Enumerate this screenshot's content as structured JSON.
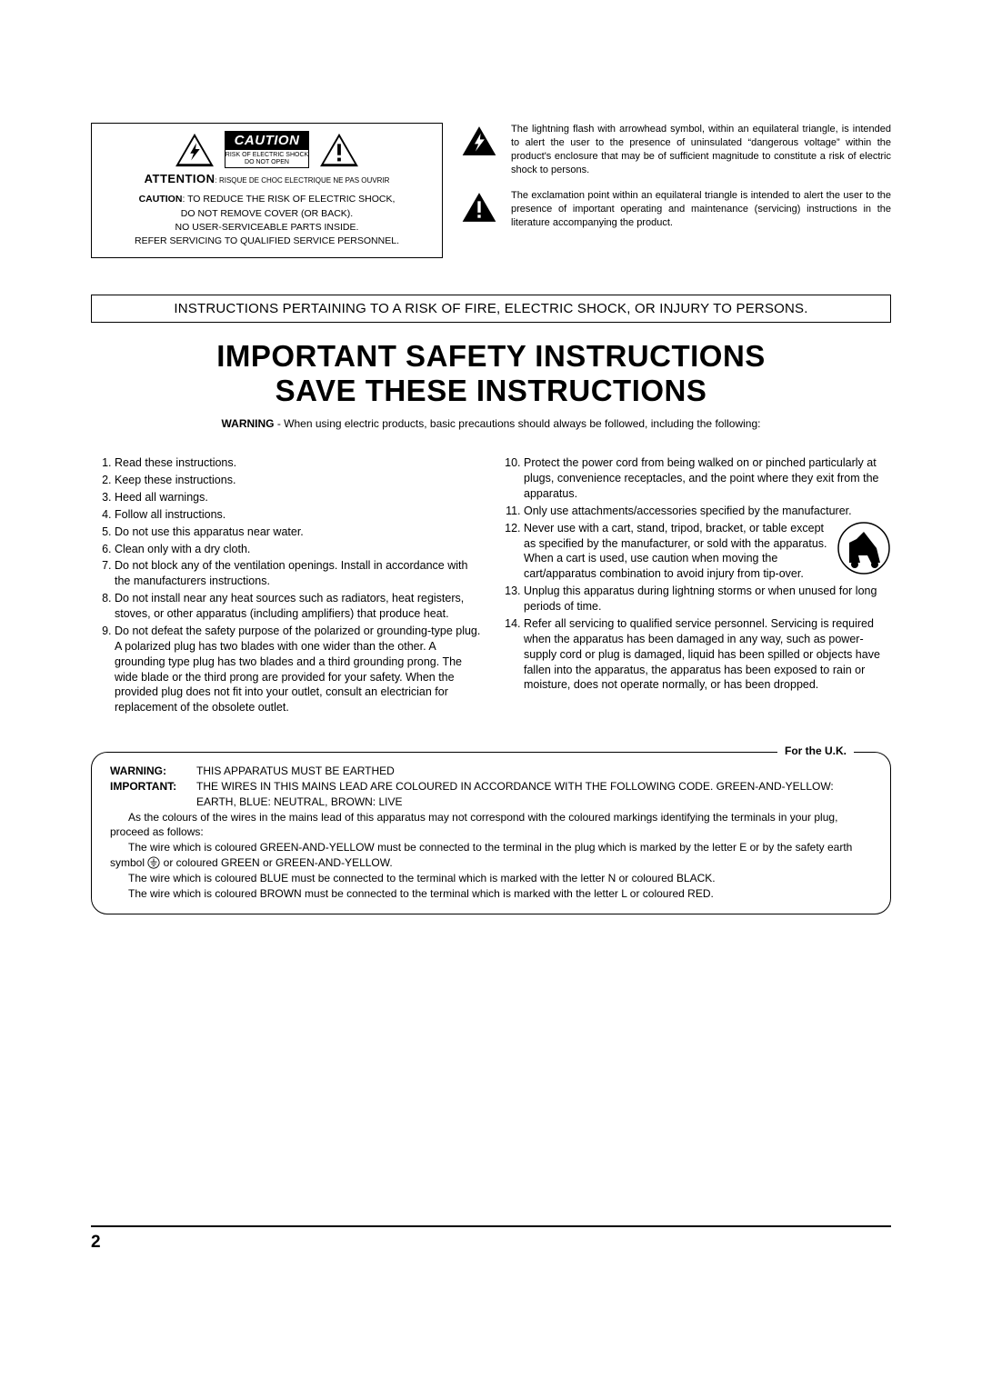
{
  "colors": {
    "text": "#000000",
    "bg": "#ffffff"
  },
  "caution_panel": {
    "label": "CAUTION",
    "tiny_line1": "RISK OF ELECTRIC SHOCK",
    "tiny_line2": "DO NOT OPEN",
    "attention_bold": "ATTENTION",
    "attention_rest": ": RISQUE DE CHOC ELECTRIQUE NE PAS OUVRIR",
    "body_bold": "CAUTION",
    "body_line1": ":   TO REDUCE THE RISK OF ELECTRIC SHOCK,",
    "body_line2": "DO NOT REMOVE COVER (OR BACK).",
    "body_line3": "NO USER-SERVICEABLE PARTS INSIDE.",
    "body_line4": "REFER SERVICING TO QUALIFIED SERVICE PERSONNEL."
  },
  "icon_desc": {
    "lightning": "The lightning flash with arrowhead symbol, within an equilateral triangle, is intended to alert the user to the presence of uninsulated “dangerous voltage” within the product's enclosure that may be of sufficient magnitude to constitute a risk of electric shock to persons.",
    "exclaim": "The exclamation point within an equilateral triangle is intended to alert the user to the presence of important operating and maintenance (servicing) instructions in the literature accompanying the product."
  },
  "banner": "INSTRUCTIONS PERTAINING TO A RISK OF FIRE, ELECTRIC SHOCK, OR INJURY TO PERSONS.",
  "heading_l1": "IMPORTANT SAFETY INSTRUCTIONS",
  "heading_l2": "SAVE THESE INSTRUCTIONS",
  "warning_bold": "WARNING",
  "warning_rest": " - When using electric products, basic precautions should always be followed, including the following:",
  "list_left": [
    "Read these instructions.",
    "Keep these instructions.",
    "Heed all warnings.",
    "Follow all instructions.",
    "Do not use this apparatus near water.",
    "Clean only with a dry cloth.",
    "Do not block any of the ventilation openings. Install in accordance with the manufacturers instructions.",
    "Do not install near any heat sources such as radiators, heat registers, stoves, or other apparatus (including amplifiers) that produce heat.",
    "Do not defeat the safety purpose of the polarized or grounding-type plug. A polarized plug has two blades with one wider than the other. A grounding type plug has two blades and a third grounding prong. The wide blade or the third prong are provided for your safety. When the provided plug does not fit into your outlet, consult an electrician for replacement of the obsolete outlet."
  ],
  "list_right": [
    "Protect the power cord from being walked on or pinched particularly at plugs, convenience receptacles, and the point where they exit from the apparatus.",
    "Only use attachments/accessories specified by the manufacturer.",
    "Never use with a cart, stand, tripod, bracket, or table except as specified by the manufacturer, or sold with the apparatus. When a cart is used, use caution when moving the cart/apparatus combination to avoid injury from tip-over.",
    "Unplug this apparatus during lightning storms or when unused for long periods of time.",
    "Refer all servicing to qualified service personnel. Servicing is required when the apparatus has been damaged in any way, such as power-supply cord or plug is damaged, liquid has been spilled or objects have fallen into the apparatus, the apparatus has been exposed to rain or moisture, does not operate normally, or has been dropped."
  ],
  "uk": {
    "label": "For the U.K.",
    "warning_label": "WARNING:",
    "warning_text": "THIS APPARATUS MUST BE EARTHED",
    "important_label": "IMPORTANT:",
    "important_text": "THE WIRES IN THIS MAINS LEAD ARE COLOURED IN ACCORDANCE WITH THE FOLLOWING CODE. GREEN-AND-YELLOW: EARTH, BLUE: NEUTRAL, BROWN: LIVE",
    "para1": "As the colours of the wires in the mains lead of this apparatus may not correspond with the coloured markings identifying the terminals in your plug, proceed as follows:",
    "para2a": "The wire which is coloured GREEN-AND-YELLOW must be connected to the terminal in the plug which is marked by the letter E or by the safety earth symbol ",
    "para2b": " or coloured GREEN or GREEN-AND-YELLOW.",
    "para3": "The wire which is coloured BLUE must be connected to the terminal which is marked with the letter N or coloured BLACK.",
    "para4": "The wire which is coloured BROWN must be connected to the terminal which is marked with the letter L or coloured RED."
  },
  "page_number": "2"
}
